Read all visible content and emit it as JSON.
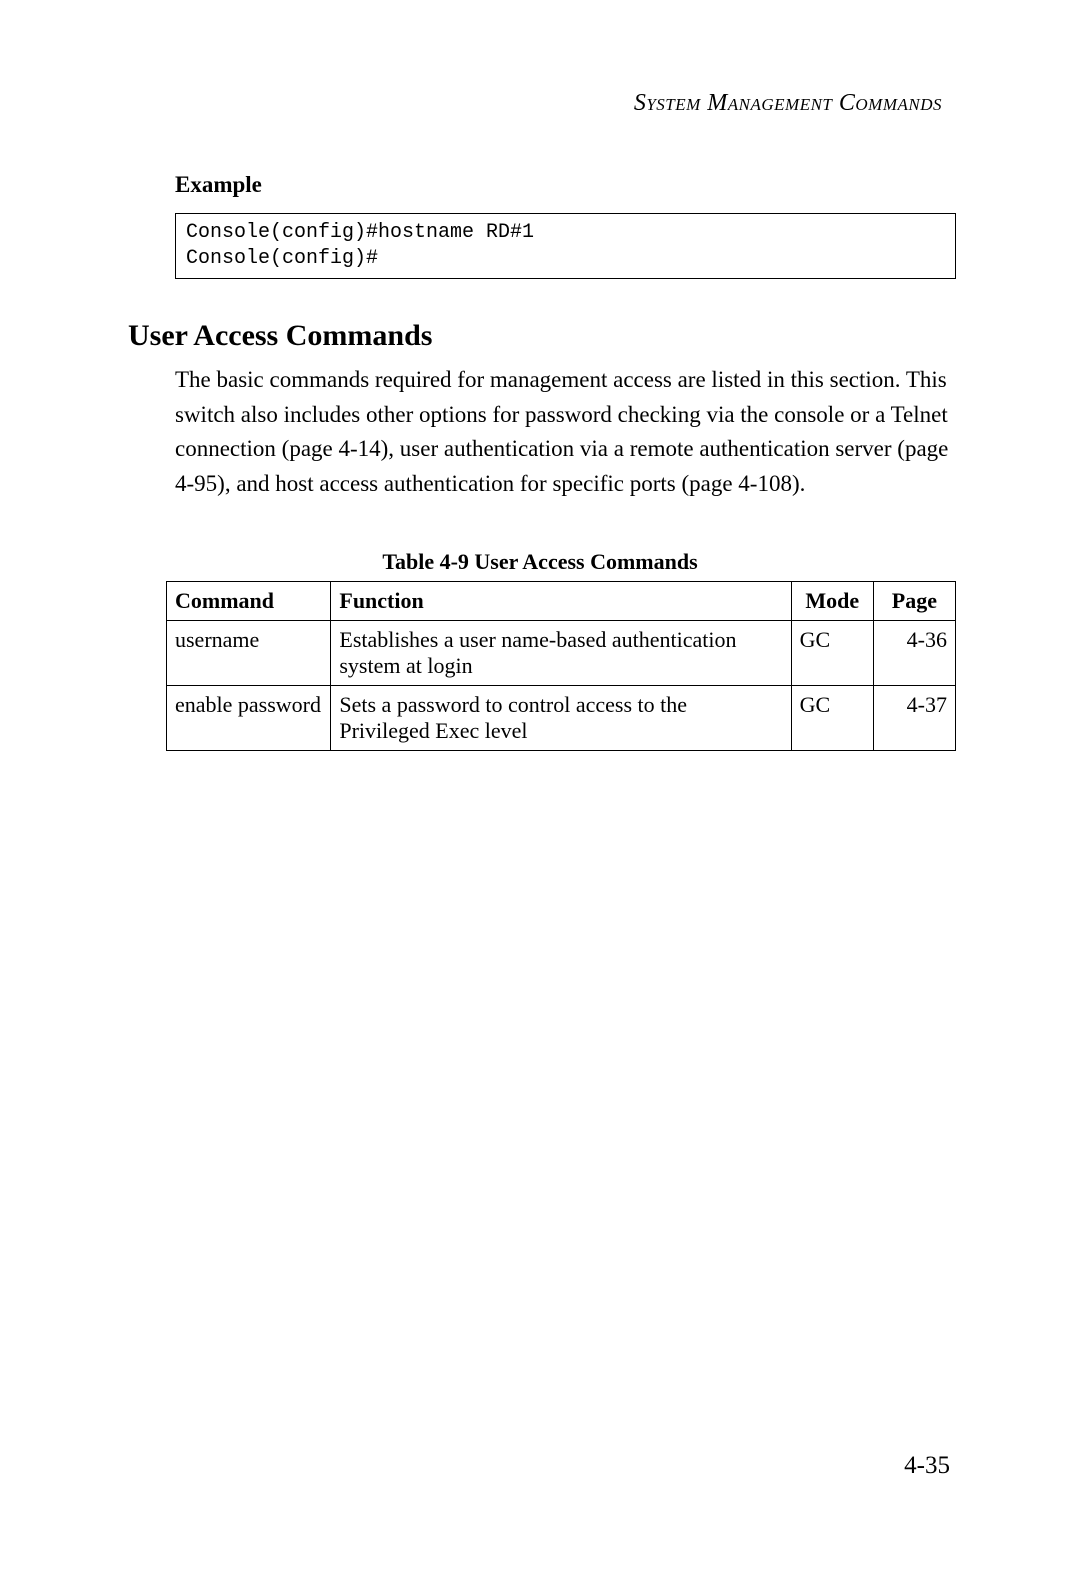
{
  "header": {
    "text": "System Management Commands"
  },
  "example": {
    "heading": "Example",
    "code": "Console(config)#hostname RD#1\nConsole(config)#"
  },
  "section": {
    "heading": "User Access Commands",
    "paragraph": "The basic commands required for management access are listed in this section. This switch also includes other options for password checking via the console or a Telnet connection (page 4-14), user authentication via a remote authentication server (page 4-95), and host access authentication for specific ports (page 4-108)."
  },
  "table": {
    "caption": "Table 4-9  User Access Commands",
    "columns": [
      "Command",
      "Function",
      "Mode",
      "Page"
    ],
    "rows": [
      {
        "command": "username",
        "function": "Establishes a user name-based authentication system at login",
        "mode": "GC",
        "page": "4-36"
      },
      {
        "command": "enable password",
        "function": "Sets a password to control access to the Privileged Exec level",
        "mode": "GC",
        "page": "4-37"
      }
    ]
  },
  "footer": {
    "page_number": "4-35"
  }
}
